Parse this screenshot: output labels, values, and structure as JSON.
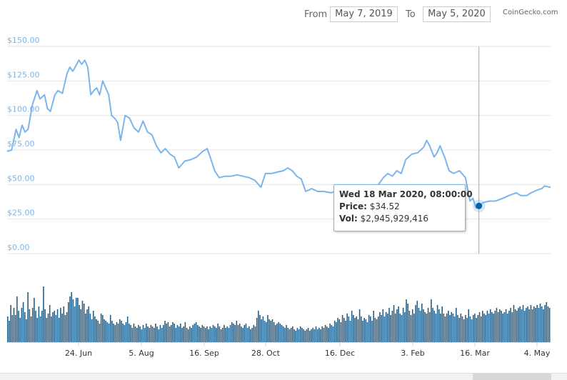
{
  "range": {
    "from_label": "From",
    "from_value": "May 7, 2019",
    "to_label": "To",
    "to_value": "May 5, 2020"
  },
  "credit": "CoinGecko.com",
  "tooltip": {
    "date": "Wed 18 Mar 2020, 08:00:00",
    "price_label": "Price:",
    "price_value": "$34.52",
    "vol_label": "Vol:",
    "vol_value": "$2,945,929,416"
  },
  "colors": {
    "price_line": "#7cb5ec",
    "volume_bar": "#1f5f8b",
    "marker": "#0b62a8",
    "gridline": "#e6e6e6"
  },
  "chart_data": {
    "type": "line",
    "ylim": [
      0,
      150
    ],
    "yticks": [
      "$150.00",
      "$125.00",
      "$100.00",
      "$75.00",
      "$50.00",
      "$25.00",
      "$0.00"
    ],
    "xticks": [
      "24. Jun",
      "5. Aug",
      "16. Sep",
      "28. Oct",
      "16. Dec",
      "3. Feb",
      "16. Mar",
      "4. May"
    ],
    "x_range": [
      "2019-05-07",
      "2020-05-05"
    ],
    "series": [
      {
        "points": [
          [
            "2019-05-07",
            74
          ],
          [
            "2019-05-10",
            75
          ],
          [
            "2019-05-13",
            90
          ],
          [
            "2019-05-15",
            84
          ],
          [
            "2019-05-17",
            93
          ],
          [
            "2019-05-19",
            88
          ],
          [
            "2019-05-21",
            90
          ],
          [
            "2019-05-24",
            108
          ],
          [
            "2019-05-27",
            118
          ],
          [
            "2019-05-29",
            112
          ],
          [
            "2019-06-01",
            115
          ],
          [
            "2019-06-03",
            105
          ],
          [
            "2019-06-05",
            103
          ],
          [
            "2019-06-08",
            115
          ],
          [
            "2019-06-10",
            118
          ],
          [
            "2019-06-13",
            116
          ],
          [
            "2019-06-16",
            130
          ],
          [
            "2019-06-18",
            135
          ],
          [
            "2019-06-20",
            132
          ],
          [
            "2019-06-22",
            136
          ],
          [
            "2019-06-24",
            140
          ],
          [
            "2019-06-26",
            137
          ],
          [
            "2019-06-28",
            140
          ],
          [
            "2019-06-30",
            135
          ],
          [
            "2019-07-02",
            115
          ],
          [
            "2019-07-04",
            118
          ],
          [
            "2019-07-06",
            120
          ],
          [
            "2019-07-08",
            115
          ],
          [
            "2019-07-10",
            125
          ],
          [
            "2019-07-12",
            120
          ],
          [
            "2019-07-14",
            115
          ],
          [
            "2019-07-16",
            100
          ],
          [
            "2019-07-18",
            98
          ],
          [
            "2019-07-20",
            95
          ],
          [
            "2019-07-22",
            82
          ],
          [
            "2019-07-25",
            100
          ],
          [
            "2019-07-28",
            98
          ],
          [
            "2019-07-31",
            91
          ],
          [
            "2019-08-03",
            88
          ],
          [
            "2019-08-06",
            96
          ],
          [
            "2019-08-09",
            88
          ],
          [
            "2019-08-12",
            86
          ],
          [
            "2019-08-15",
            78
          ],
          [
            "2019-08-18",
            73
          ],
          [
            "2019-08-21",
            76
          ],
          [
            "2019-08-24",
            72
          ],
          [
            "2019-08-27",
            70
          ],
          [
            "2019-08-30",
            62
          ],
          [
            "2019-09-03",
            67
          ],
          [
            "2019-09-07",
            68
          ],
          [
            "2019-09-11",
            70
          ],
          [
            "2019-09-15",
            74
          ],
          [
            "2019-09-18",
            76
          ],
          [
            "2019-09-20",
            70
          ],
          [
            "2019-09-23",
            60
          ],
          [
            "2019-09-26",
            55
          ],
          [
            "2019-09-30",
            56
          ],
          [
            "2019-10-04",
            56
          ],
          [
            "2019-10-08",
            57
          ],
          [
            "2019-10-12",
            56
          ],
          [
            "2019-10-16",
            55
          ],
          [
            "2019-10-20",
            53
          ],
          [
            "2019-10-24",
            48
          ],
          [
            "2019-10-27",
            58
          ],
          [
            "2019-10-31",
            58
          ],
          [
            "2019-11-04",
            59
          ],
          [
            "2019-11-08",
            60
          ],
          [
            "2019-11-11",
            62
          ],
          [
            "2019-11-14",
            60
          ],
          [
            "2019-11-17",
            56
          ],
          [
            "2019-11-20",
            54
          ],
          [
            "2019-11-23",
            45
          ],
          [
            "2019-11-27",
            47
          ],
          [
            "2019-12-01",
            45
          ],
          [
            "2019-12-05",
            45
          ],
          [
            "2019-12-10",
            44
          ],
          [
            "2019-12-15",
            46
          ],
          [
            "2019-12-19",
            43
          ],
          [
            "2019-12-23",
            47
          ],
          [
            "2019-12-28",
            45
          ],
          [
            "2020-01-02",
            47
          ],
          [
            "2020-01-06",
            47
          ],
          [
            "2020-01-10",
            49
          ],
          [
            "2020-01-14",
            55
          ],
          [
            "2020-01-17",
            58
          ],
          [
            "2020-01-20",
            56
          ],
          [
            "2020-01-23",
            60
          ],
          [
            "2020-01-26",
            58
          ],
          [
            "2020-01-29",
            68
          ],
          [
            "2020-02-02",
            72
          ],
          [
            "2020-02-06",
            73
          ],
          [
            "2020-02-10",
            77
          ],
          [
            "2020-02-12",
            82
          ],
          [
            "2020-02-14",
            78
          ],
          [
            "2020-02-17",
            70
          ],
          [
            "2020-02-19",
            73
          ],
          [
            "2020-02-21",
            78
          ],
          [
            "2020-02-24",
            70
          ],
          [
            "2020-02-27",
            60
          ],
          [
            "2020-03-01",
            58
          ],
          [
            "2020-03-05",
            60
          ],
          [
            "2020-03-09",
            55
          ],
          [
            "2020-03-12",
            38
          ],
          [
            "2020-03-14",
            40
          ],
          [
            "2020-03-16",
            33
          ],
          [
            "2020-03-18",
            34.52
          ],
          [
            "2020-03-21",
            37
          ],
          [
            "2020-03-25",
            38
          ],
          [
            "2020-03-29",
            38
          ],
          [
            "2020-04-03",
            40
          ],
          [
            "2020-04-07",
            42
          ],
          [
            "2020-04-12",
            44
          ],
          [
            "2020-04-15",
            42
          ],
          [
            "2020-04-19",
            42
          ],
          [
            "2020-04-22",
            44
          ],
          [
            "2020-04-26",
            46
          ],
          [
            "2020-04-29",
            47
          ],
          [
            "2020-05-01",
            49
          ],
          [
            "2020-05-05",
            48
          ]
        ]
      }
    ],
    "volume_scale_max": 4500000000,
    "volume_daily": [
      1.8,
      1.5,
      2.6,
      1.9,
      2.4,
      1.9,
      3.2,
      2.2,
      1.7,
      2.4,
      2.8,
      2.1,
      1.6,
      3.5,
      2.3,
      1.8,
      2.4,
      3.1,
      2.2,
      1.7,
      2.5,
      1.8,
      2.2,
      3.9,
      2.3,
      1.7,
      2.0,
      2.6,
      1.8,
      2.1,
      2.2,
      1.9,
      2.3,
      1.7,
      2.4,
      2.0,
      2.5,
      1.9,
      2.1,
      2.8,
      3.2,
      3.5,
      3.0,
      2.5,
      3.1,
      3.1,
      2.6,
      2.3,
      2.9,
      2.7,
      2.0,
      2.3,
      2.5,
      2.0,
      1.6,
      2.2,
      1.8,
      1.6,
      1.5,
      1.3,
      2.0,
      1.9,
      1.6,
      1.5,
      1.4,
      1.3,
      1.9,
      1.5,
      1.3,
      1.2,
      1.4,
      1.3,
      1.6,
      1.5,
      1.3,
      1.2,
      1.4,
      1.8,
      1.3,
      1.2,
      1.0,
      1.3,
      1.1,
      1.0,
      1.2,
      1.1,
      0.9,
      1.2,
      1.0,
      1.3,
      1.1,
      1.0,
      1.2,
      1.1,
      1.0,
      1.3,
      1.1,
      0.9,
      1.2,
      1.0,
      1.2,
      1.5,
      1.3,
      1.4,
      1.1,
      1.2,
      1.4,
      1.3,
      1.0,
      1.2,
      1.1,
      1.3,
      1.0,
      1.1,
      1.4,
      1.0,
      0.9,
      1.1,
      1.0,
      1.2,
      1.3,
      1.4,
      1.2,
      1.1,
      1.0,
      1.2,
      1.1,
      1.0,
      1.1,
      0.9,
      1.1,
      1.0,
      1.2,
      1.1,
      1.0,
      1.3,
      1.1,
      0.9,
      1.0,
      1.2,
      1.0,
      1.1,
      1.0,
      1.2,
      1.4,
      1.3,
      1.2,
      1.5,
      1.2,
      1.3,
      1.1,
      1.0,
      1.2,
      1.3,
      1.0,
      1.1,
      0.9,
      1.0,
      1.2,
      1.1,
      1.7,
      2.2,
      1.9,
      1.6,
      1.8,
      1.5,
      1.4,
      1.9,
      1.6,
      1.5,
      1.6,
      1.4,
      1.2,
      1.3,
      1.4,
      1.3,
      1.2,
      1.1,
      1.0,
      1.2,
      1.0,
      0.9,
      1.0,
      1.1,
      0.9,
      0.8,
      1.0,
      0.9,
      1.1,
      1.0,
      0.9,
      0.8,
      0.9,
      1.0,
      0.8,
      0.9,
      1.0,
      0.9,
      1.1,
      0.9,
      1.0,
      0.9,
      1.1,
      1.0,
      1.2,
      1.1,
      1.0,
      1.3,
      1.2,
      1.1,
      1.5,
      1.4,
      1.7,
      1.6,
      1.4,
      1.9,
      1.7,
      1.5,
      2.0,
      1.8,
      1.5,
      2.2,
      1.9,
      1.7,
      1.8,
      1.6,
      2.3,
      1.8,
      1.5,
      1.7,
      1.6,
      1.4,
      1.9,
      1.8,
      1.5,
      2.2,
      1.7,
      1.6,
      1.8,
      2.1,
      1.9,
      2.3,
      1.8,
      2.1,
      2.0,
      2.4,
      1.9,
      2.2,
      2.6,
      2.0,
      2.3,
      2.5,
      2.0,
      1.9,
      2.4,
      2.1,
      3.0,
      2.7,
      2.2,
      1.9,
      2.3,
      2.0,
      2.6,
      2.9,
      2.4,
      2.2,
      2.7,
      2.3,
      2.1,
      2.0,
      2.4,
      2.1,
      3.0,
      2.4,
      2.2,
      2.0,
      2.6,
      2.3,
      2.0,
      2.5,
      2.0,
      1.8,
      2.0,
      2.2,
      1.9,
      2.1,
      2.0,
      1.8,
      2.4,
      1.9,
      1.7,
      2.0,
      1.8,
      1.6,
      1.9,
      1.7,
      2.3,
      1.8,
      1.6,
      1.9,
      2.0,
      1.7,
      1.9,
      2.1,
      1.8,
      2.2,
      2.0,
      1.9,
      2.2,
      2.0,
      2.3,
      2.1,
      2.0,
      2.2,
      2.4,
      2.1,
      2.3,
      2.2,
      2.0,
      2.1,
      2.3,
      2.0,
      2.2,
      2.4,
      2.1,
      2.6,
      2.3,
      2.2,
      2.4,
      2.5,
      2.3,
      2.6,
      2.2,
      2.4,
      2.5,
      2.3,
      2.6,
      2.3,
      2.5,
      2.4,
      2.6,
      2.4,
      2.7,
      2.5,
      2.3,
      2.6,
      2.8,
      2.5,
      2.4
    ]
  }
}
